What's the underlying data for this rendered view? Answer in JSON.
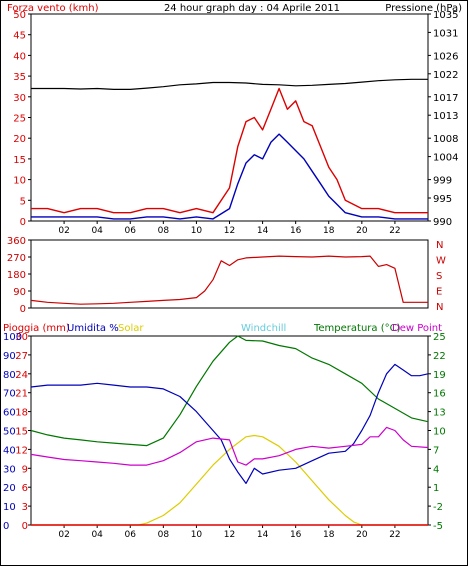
{
  "colors": {
    "background": "#ffffff",
    "frame": "#000000",
    "wind_gust": "#dd0000",
    "wind_avg": "#0000bb",
    "pressure": "#000000",
    "direction": "#cc0000",
    "rain": "#dd0000",
    "humidity": "#0000bb",
    "solar": "#ddcc00",
    "windchill": "#66ccdd",
    "temperature": "#007700",
    "dewpoint": "#cc00cc",
    "grid": "#cccccc"
  },
  "chart_data": [
    {
      "type": "line",
      "title": "24 hour graph day : 04 Aprile 2011",
      "ylabel": "Forza vento (kmh)",
      "y2label": "Pressione (hPa)",
      "x_ticks": [
        "02",
        "04",
        "06",
        "08",
        "10",
        "12",
        "14",
        "16",
        "18",
        "20",
        "22"
      ],
      "xlim": [
        0,
        24
      ],
      "ylim": [
        0,
        50
      ],
      "y_ticks": [
        0,
        5,
        10,
        15,
        20,
        25,
        30,
        35,
        40,
        45,
        50
      ],
      "y2lim": [
        990,
        1035
      ],
      "y2_ticks": [
        990,
        995,
        999,
        1004,
        1008,
        1013,
        1017,
        1022,
        1026,
        1031,
        1035
      ],
      "grid": false,
      "series": [
        {
          "name": "Pressione",
          "axis": "right",
          "x": [
            0,
            1,
            2,
            3,
            4,
            5,
            6,
            7,
            8,
            9,
            10,
            11,
            12,
            13,
            14,
            15,
            16,
            17,
            18,
            19,
            20,
            21,
            22,
            23,
            24
          ],
          "values": [
            1018.8,
            1018.8,
            1018.8,
            1018.7,
            1018.8,
            1018.6,
            1018.6,
            1018.9,
            1019.2,
            1019.6,
            1019.8,
            1020.1,
            1020.1,
            1020.0,
            1019.7,
            1019.6,
            1019.4,
            1019.5,
            1019.7,
            1019.9,
            1020.2,
            1020.5,
            1020.7,
            1020.8,
            1020.8
          ]
        },
        {
          "name": "Raffica",
          "axis": "left",
          "x": [
            0,
            1,
            2,
            3,
            4,
            5,
            6,
            7,
            8,
            9,
            10,
            11,
            12,
            12.5,
            13,
            13.5,
            14,
            14.5,
            15,
            15.5,
            16,
            16.5,
            17,
            17.5,
            18,
            18.5,
            19,
            20,
            21,
            22,
            23,
            24
          ],
          "values": [
            3,
            3,
            2,
            3,
            3,
            2,
            2,
            3,
            3,
            2,
            3,
            2,
            8,
            18,
            24,
            25,
            22,
            27,
            32,
            27,
            29,
            24,
            23,
            18,
            13,
            10,
            5,
            3,
            3,
            2,
            2,
            2
          ]
        },
        {
          "name": "Vento medio",
          "axis": "left",
          "x": [
            0,
            1,
            2,
            3,
            4,
            5,
            6,
            7,
            8,
            9,
            10,
            11,
            12,
            12.5,
            13,
            13.5,
            14,
            14.5,
            15,
            15.5,
            16,
            16.5,
            17,
            17.5,
            18,
            18.5,
            19,
            20,
            21,
            22,
            23,
            24
          ],
          "values": [
            1,
            1,
            1,
            1,
            1,
            0.5,
            0.5,
            1,
            1,
            0.5,
            1,
            0.5,
            3,
            9,
            14,
            16,
            15,
            19,
            21,
            19,
            17,
            15,
            12,
            9,
            6,
            4,
            2,
            1,
            1,
            0.5,
            0.5,
            0.5
          ]
        }
      ]
    },
    {
      "type": "line",
      "ylim": [
        0,
        360
      ],
      "y_ticks": [
        0,
        90,
        180,
        270,
        360
      ],
      "y2_labels": [
        "N",
        "W",
        "S",
        "E",
        "N"
      ],
      "grid": false,
      "series": [
        {
          "name": "Direzione",
          "x": [
            0,
            1,
            2,
            3,
            4,
            5,
            6,
            7,
            8,
            9,
            10,
            10.5,
            11,
            11.5,
            12,
            12.5,
            13,
            14,
            15,
            16,
            17,
            18,
            19,
            20,
            20.5,
            21,
            21.5,
            22,
            22.5,
            23,
            24
          ],
          "values": [
            40,
            30,
            25,
            20,
            22,
            25,
            30,
            35,
            40,
            45,
            55,
            90,
            150,
            250,
            225,
            255,
            265,
            270,
            275,
            272,
            270,
            275,
            270,
            272,
            275,
            220,
            230,
            210,
            30,
            30,
            30
          ]
        }
      ]
    },
    {
      "type": "line",
      "labels": [
        "Pioggia (mm)",
        "Umidita %",
        "Solar",
        "Windchill",
        "Temperatura (°C)",
        "Dew Point"
      ],
      "x_ticks": [
        "02",
        "04",
        "06",
        "08",
        "10",
        "12",
        "14",
        "16",
        "18",
        "20",
        "22"
      ],
      "xlim": [
        0,
        24
      ],
      "ylim": [
        0,
        30
      ],
      "y_ticks": [
        0,
        3,
        6,
        9,
        12,
        15,
        18,
        21,
        24,
        27,
        30
      ],
      "y_ticks_mid": [
        0,
        10,
        20,
        30,
        40,
        50,
        60,
        70,
        80,
        90,
        100
      ],
      "y2lim": [
        -5,
        25
      ],
      "y2_ticks": [
        -5,
        -2,
        1,
        4,
        7,
        10,
        13,
        16,
        19,
        22,
        25
      ],
      "grid": false,
      "series": [
        {
          "name": "Pioggia",
          "axis": "left",
          "x": [
            0,
            24
          ],
          "values": [
            0,
            0
          ]
        },
        {
          "name": "Umidita",
          "axis": "mid",
          "x": [
            0,
            1,
            2,
            3,
            4,
            5,
            6,
            7,
            8,
            9,
            10,
            10.5,
            11,
            11.5,
            12,
            12.5,
            13,
            13.5,
            14,
            15,
            16,
            17,
            18,
            19,
            19.5,
            20,
            20.5,
            21,
            21.5,
            22,
            22.5,
            23,
            23.5,
            24
          ],
          "values": [
            73,
            74,
            74,
            74,
            75,
            74,
            73,
            73,
            72,
            68,
            60,
            55,
            50,
            45,
            35,
            28,
            22,
            30,
            27,
            29,
            30,
            34,
            38,
            39,
            43,
            50,
            58,
            70,
            80,
            85,
            82,
            79,
            79,
            80
          ]
        },
        {
          "name": "Solar",
          "axis": "left",
          "x": [
            0,
            6.5,
            7,
            8,
            9,
            10,
            11,
            12,
            13,
            13.5,
            14,
            15,
            16,
            17,
            18,
            19,
            19.5,
            20,
            24
          ],
          "values": [
            0,
            0,
            0.3,
            1.5,
            3.5,
            6.5,
            9.5,
            12,
            14,
            14.2,
            14,
            12.5,
            10,
            7,
            4,
            1.5,
            0.5,
            0,
            0
          ]
        },
        {
          "name": "Temperatura",
          "axis": "right",
          "x": [
            0,
            1,
            2,
            3,
            4,
            5,
            6,
            7,
            8,
            9,
            10,
            11,
            12,
            12.5,
            13,
            14,
            15,
            16,
            17,
            18,
            19,
            20,
            21,
            22,
            23,
            24
          ],
          "values": [
            10,
            9.3,
            8.8,
            8.5,
            8.2,
            8,
            7.8,
            7.6,
            8.8,
            12.5,
            17,
            21,
            24,
            25,
            24.3,
            24.2,
            23.5,
            23,
            21.5,
            20.5,
            19,
            17.5,
            15,
            13.5,
            12,
            11.4
          ]
        },
        {
          "name": "Dew Point",
          "axis": "right",
          "x": [
            0,
            1,
            2,
            3,
            4,
            5,
            6,
            7,
            8,
            9,
            10,
            11,
            12,
            12.5,
            13,
            13.5,
            14,
            15,
            16,
            17,
            18,
            19,
            20,
            20.5,
            21,
            21.5,
            22,
            22.5,
            23,
            24
          ],
          "values": [
            6.2,
            5.8,
            5.4,
            5.2,
            5,
            4.8,
            4.5,
            4.5,
            5.2,
            6.5,
            8.2,
            8.8,
            8.5,
            5,
            4.5,
            5.5,
            5.5,
            6,
            7,
            7.5,
            7.2,
            7.5,
            7.8,
            9,
            9,
            10.5,
            10,
            8.5,
            7.5,
            7.3
          ]
        }
      ]
    }
  ]
}
